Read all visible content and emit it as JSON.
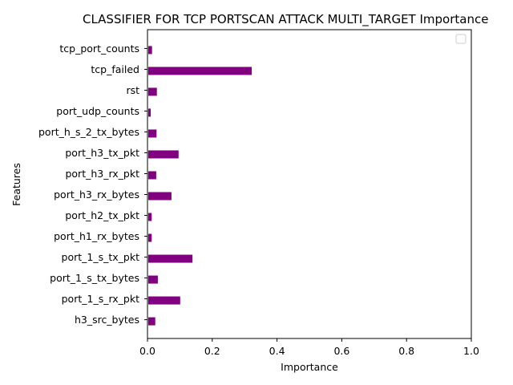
{
  "chart_data": {
    "type": "bar",
    "orientation": "horizontal",
    "title": "CLASSIFIER FOR TCP PORTSCAN ATTACK MULTI_TARGET Importance",
    "xlabel": "Importance",
    "ylabel": "Features",
    "xlim": [
      0,
      1
    ],
    "x_ticks": [
      "0.0",
      "0.2",
      "0.4",
      "0.6",
      "0.8",
      "1.0"
    ],
    "categories": [
      "h3_src_bytes",
      "port_1_s_rx_pkt",
      "port_1_s_tx_bytes",
      "port_1_s_tx_pkt",
      "port_h1_rx_bytes",
      "port_h2_tx_pkt",
      "port_h3_rx_bytes",
      "port_h3_rx_pkt",
      "port_h3_tx_pkt",
      "port_h_s_2_tx_bytes",
      "port_udp_counts",
      "rst",
      "tcp_failed",
      "tcp_port_counts"
    ],
    "values": [
      0.024,
      0.101,
      0.032,
      0.139,
      0.013,
      0.013,
      0.074,
      0.027,
      0.096,
      0.028,
      0.01,
      0.029,
      0.322,
      0.014
    ],
    "bar_color": "#800080",
    "grid": false,
    "legend": {
      "placement": "top-right",
      "entries": []
    }
  }
}
